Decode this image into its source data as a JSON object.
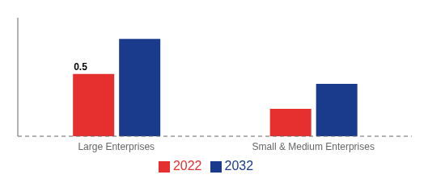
{
  "chart_data": {
    "type": "bar",
    "categories": [
      "Large Enterprises",
      "Small & Medium Enterprises"
    ],
    "series": [
      {
        "name": "2022",
        "color": "#e63030",
        "values": [
          0.5,
          0.22
        ]
      },
      {
        "name": "2032",
        "color": "#1a3a8c",
        "values": [
          0.78,
          0.42
        ]
      }
    ],
    "ylim": [
      0,
      0.95
    ],
    "annotations": [
      {
        "text": "0.5",
        "series": "2022",
        "x": "Large Enterprises",
        "y": 0.5
      }
    ],
    "legend": "bottom",
    "grid": false,
    "tick_labels": "x"
  }
}
